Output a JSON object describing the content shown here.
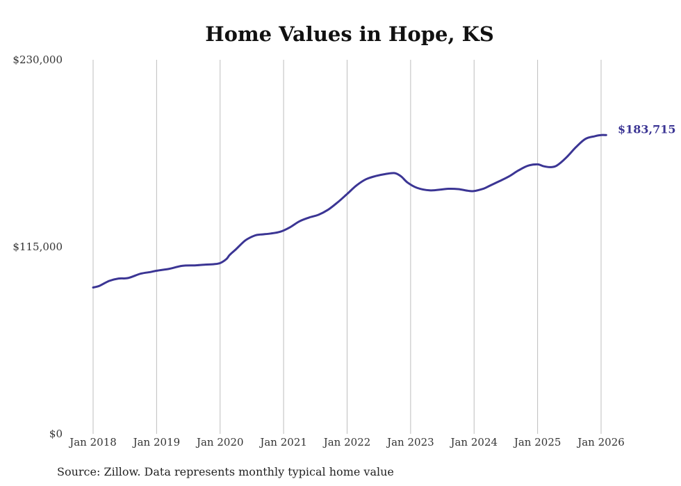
{
  "chart_data": {
    "type": "line",
    "title": "Home Values in Hope, KS",
    "source": "Source: Zillow. Data represents monthly typical home value",
    "ylim": [
      0,
      230000
    ],
    "y_ticks": [
      {
        "value": 0,
        "label": "$0"
      },
      {
        "value": 115000,
        "label": "$115,000"
      },
      {
        "value": 230000,
        "label": "$230,000"
      }
    ],
    "x_ticks": [
      {
        "value": 2018,
        "label": "Jan 2018"
      },
      {
        "value": 2019,
        "label": "Jan 2019"
      },
      {
        "value": 2020,
        "label": "Jan 2020"
      },
      {
        "value": 2021,
        "label": "Jan 2021"
      },
      {
        "value": 2022,
        "label": "Jan 2022"
      },
      {
        "value": 2023,
        "label": "Jan 2023"
      },
      {
        "value": 2024,
        "label": "Jan 2024"
      },
      {
        "value": 2025,
        "label": "Jan 2025"
      },
      {
        "value": 2026,
        "label": "Jan 2026"
      }
    ],
    "xlim": [
      2018,
      2026
    ],
    "series": [
      {
        "name": "Home value",
        "color": "#3b3594",
        "end_label": "$183,715",
        "x": [
          2018.0,
          2018.1,
          2018.25,
          2018.4,
          2018.55,
          2018.75,
          2018.9,
          2019.0,
          2019.2,
          2019.4,
          2019.6,
          2019.75,
          2019.9,
          2020.0,
          2020.1,
          2020.15,
          2020.25,
          2020.4,
          2020.55,
          2020.65,
          2020.8,
          2020.95,
          2021.1,
          2021.25,
          2021.4,
          2021.55,
          2021.7,
          2021.85,
          2022.0,
          2022.15,
          2022.3,
          2022.45,
          2022.6,
          2022.75,
          2022.85,
          2022.95,
          2023.1,
          2023.3,
          2023.5,
          2023.6,
          2023.75,
          2023.9,
          2024.0,
          2024.15,
          2024.25,
          2024.4,
          2024.55,
          2024.7,
          2024.85,
          2025.0,
          2025.1,
          2025.2,
          2025.3,
          2025.45,
          2025.6,
          2025.75,
          2025.9,
          2026.0,
          2026.08
        ],
        "values": [
          90000,
          91000,
          94000,
          95500,
          95800,
          98500,
          99500,
          100300,
          101500,
          103300,
          103600,
          104000,
          104300,
          105000,
          107500,
          110000,
          113500,
          119000,
          122000,
          122600,
          123200,
          124300,
          127000,
          130700,
          133000,
          134700,
          137800,
          142300,
          147500,
          152800,
          156600,
          158500,
          159700,
          160300,
          158300,
          154600,
          151300,
          149700,
          150300,
          150700,
          150500,
          149500,
          149300,
          150800,
          152600,
          155400,
          158300,
          162000,
          164900,
          165700,
          164500,
          164000,
          164900,
          169800,
          176100,
          181300,
          183000,
          183715,
          183715
        ]
      }
    ]
  }
}
